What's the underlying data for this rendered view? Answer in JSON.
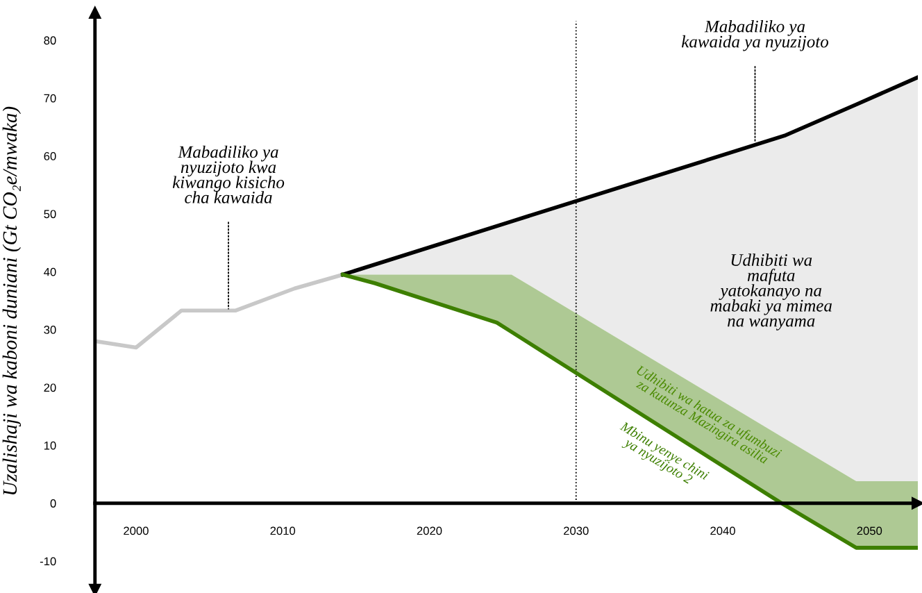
{
  "chart_data": {
    "type": "line",
    "ylabel": "Uzalishaji wa kaboni duniani (Gt CO₂e/mwaka)",
    "xlim": [
      1997.2,
      2053.3
    ],
    "ylim": [
      -15,
      84.8
    ],
    "xticks": [
      2000,
      2010,
      2020,
      2030,
      2040,
      2050
    ],
    "yticks": [
      -10,
      0,
      10,
      20,
      30,
      40,
      50,
      60,
      70,
      80
    ],
    "series": [
      {
        "color": "#c8c8c8",
        "x": [
          1997.2,
          2000.0,
          2003.1,
          2006.8,
          2010.8,
          2014.1
        ],
        "values": [
          28.0,
          26.9,
          33.3,
          33.3,
          37.1,
          39.5
        ]
      },
      {
        "color": "#000000",
        "x": [
          2014.1,
          2025.6,
          2044.2,
          2049.1,
          2053.3
        ],
        "values": [
          39.5,
          48.7,
          63.5,
          68.9,
          73.6
        ],
        "lower": [
          39.5,
          39.5,
          11.2,
          3.8,
          3.8
        ],
        "upper": [
          39.5,
          48.7,
          63.5,
          68.9,
          73.6
        ]
      },
      {
        "name": "Mbinu yenye chini ya nyuzijoto 2",
        "color": "#3d7f00",
        "x": [
          2014.1,
          2016.3,
          2024.6,
          2025.6,
          2044.0,
          2049.1,
          2053.3
        ],
        "values": [
          39.5,
          38.0,
          31.2,
          29.6,
          0,
          -7.7,
          -7.7
        ],
        "lower": [
          39.5,
          38.0,
          31.2,
          29.6,
          0,
          -7.7,
          -7.7
        ],
        "upper": [
          39.5,
          39.5,
          39.5,
          39.5,
          11.5,
          3.8,
          3.8
        ]
      }
    ],
    "annotations": [
      {
        "text": "Mabadiliko ya nyuzijoto kwa kiwango kisicho cha kawaida",
        "x": 2006.3,
        "y": 33.3
      },
      {
        "text": "Mabadiliko ya kawaida ya nyuzijoto",
        "x": 2042.2,
        "y": 62.0
      },
      "Udhibiti wa mafuta yatokanayo na mabaki ya mimea na wanyama",
      "Udhibiti wa hatua za ufumbuzi za kutunza Mazingira asilia"
    ],
    "ref_lines": [
      {
        "axis": "x",
        "value": 2030,
        "color": "#000000",
        "line_style": "dotted"
      }
    ]
  }
}
